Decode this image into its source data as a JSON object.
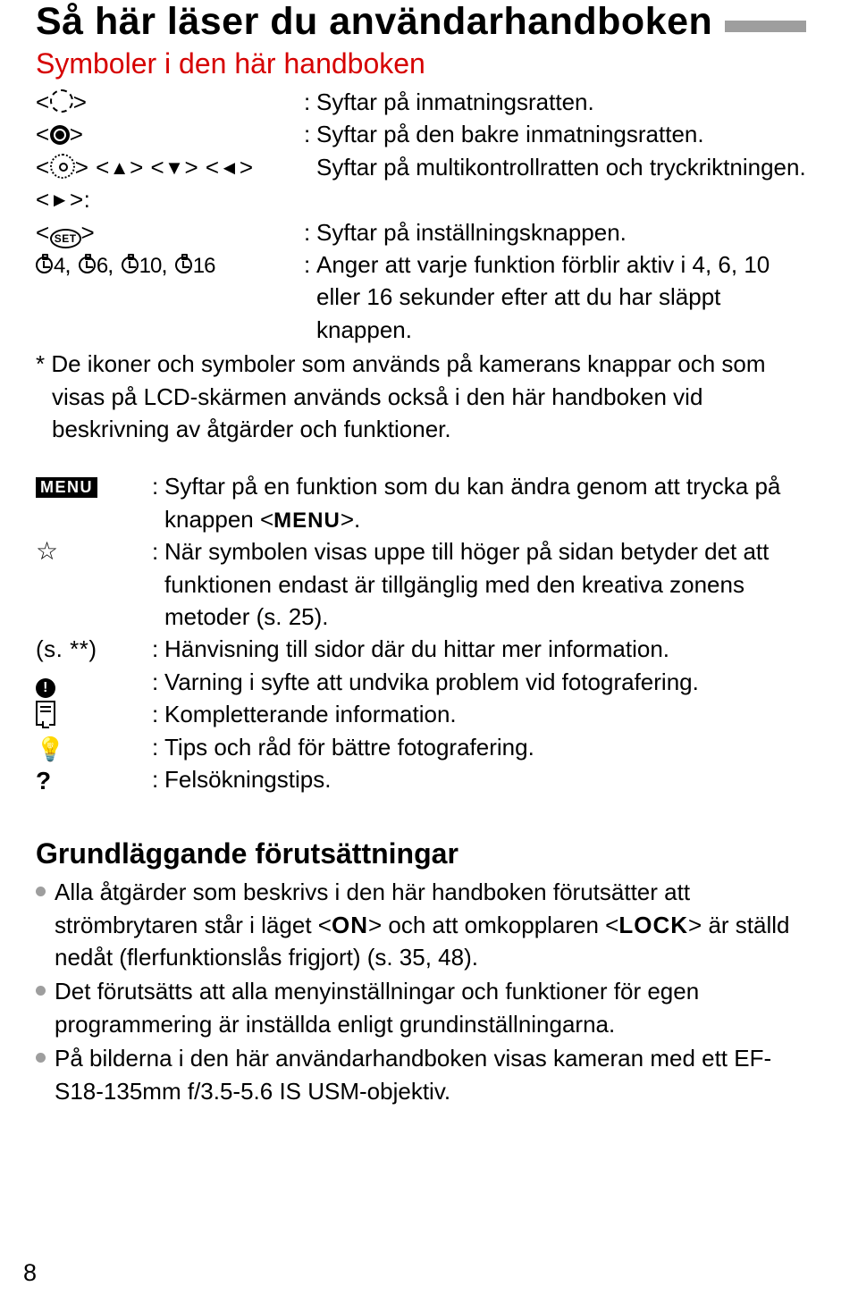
{
  "title": "Så här läser du användarhandboken",
  "subtitle": "Symboler i den här handboken",
  "symbols1": [
    {
      "desc": "Syftar på inmatningsratten."
    },
    {
      "desc": "Syftar på den bakre inmatningsratten."
    },
    {
      "desc": "Syftar på multikontrollratten och tryckriktningen."
    },
    {
      "desc": "Syftar på inställningsknappen."
    },
    {
      "desc": "Anger att varje funktion förblir aktiv i 4, 6, 10 eller 16 sekunder efter att du har släppt knappen."
    }
  ],
  "symbols1_labels": {
    "timer_nums": [
      "4",
      "6",
      "10",
      "16"
    ]
  },
  "footnote": "* De ikoner och symboler som används på kamerans knappar och som visas på LCD-skärmen används också i den här handboken vid beskrivning av åtgärder och funktioner.",
  "symbols2": [
    {
      "label_type": "menu_badge",
      "desc_pre": "Syftar på en funktion som du kan ändra genom att trycka på knappen <",
      "desc_post": ">."
    },
    {
      "label_type": "star",
      "desc": "När symbolen visas uppe till höger på sidan betyder det att funktionen endast är tillgänglig med den kreativa zonens metoder (s. 25)."
    },
    {
      "label_type": "pageref",
      "label_text": "(s. **)",
      "desc": "Hänvisning till sidor där du hittar mer information."
    },
    {
      "label_type": "excl",
      "desc": "Varning i syfte att undvika problem vid fotografering."
    },
    {
      "label_type": "note",
      "desc": "Kompletterande information."
    },
    {
      "label_type": "bulb",
      "desc": "Tips och råd för bättre fotografering."
    },
    {
      "label_type": "qmark",
      "desc": "Felsökningstips."
    }
  ],
  "heading2": "Grundläggande förutsättningar",
  "bullets": [
    {
      "parts": [
        {
          "t": "text",
          "v": "Alla åtgärder som beskrivs i den här handboken förutsätter att strömbrytaren står i läget <"
        },
        {
          "t": "on"
        },
        {
          "t": "text",
          "v": "> och att omkopplaren <"
        },
        {
          "t": "lock"
        },
        {
          "t": "text",
          "v": "> är ställd nedåt (flerfunktionslås frigjort) (s. 35, 48)."
        }
      ]
    },
    {
      "parts": [
        {
          "t": "text",
          "v": "Det förutsätts att alla menyinställningar och funktioner för egen programmering är inställda enligt grundinställningarna."
        }
      ]
    },
    {
      "parts": [
        {
          "t": "text",
          "v": "På bilderna i den här användarhandboken visas kameran med ett EF-S18-135mm f/3.5-5.6 IS USM-objektiv."
        }
      ]
    }
  ],
  "page_number": "8",
  "menu_text": "MENU",
  "on_text": "ON",
  "lock_text": "LOCK"
}
